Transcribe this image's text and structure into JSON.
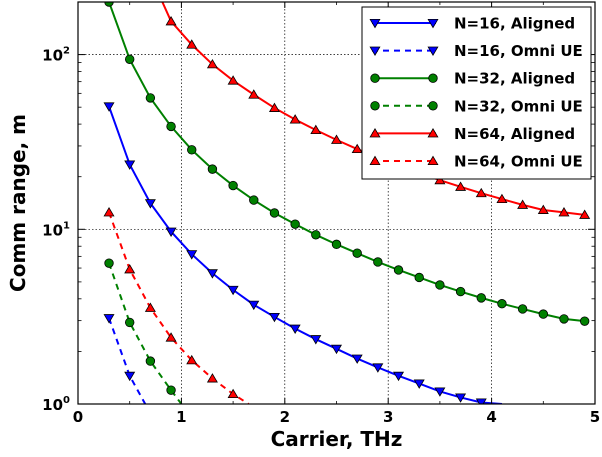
{
  "chart_data": {
    "type": "line",
    "xlabel": "Carrier, THz",
    "ylabel": "Comm range, m",
    "xlim": [
      0,
      5
    ],
    "ylim": [
      1,
      200
    ],
    "yscale": "log",
    "grid": true,
    "legend_position": "top-right",
    "x_ticks": [
      "0",
      "1",
      "2",
      "3",
      "4",
      "5"
    ],
    "y_ticks": [
      {
        "value": 1,
        "base": "10",
        "exp": "0"
      },
      {
        "value": 10,
        "base": "10",
        "exp": "1"
      },
      {
        "value": 100,
        "base": "10",
        "exp": "2"
      }
    ],
    "series": [
      {
        "name": "N=16, Aligned",
        "color": "#0000ff",
        "linestyle": "solid",
        "marker": "triangle-down",
        "x": [
          0.3,
          0.5,
          0.7,
          0.9,
          1.1,
          1.3,
          1.5,
          1.7,
          1.9,
          2.1,
          2.3,
          2.5,
          2.7,
          2.9,
          3.1,
          3.3,
          3.5,
          3.7,
          3.9,
          4.1
        ],
        "y": [
          50.5,
          23.5,
          14.1,
          9.7,
          7.2,
          5.6,
          4.5,
          3.7,
          3.15,
          2.7,
          2.35,
          2.07,
          1.82,
          1.62,
          1.45,
          1.31,
          1.18,
          1.09,
          1.02,
          1.0
        ]
      },
      {
        "name": "N=16, Omni UE",
        "color": "#0000ff",
        "linestyle": "dashed",
        "marker": "triangle-down",
        "x": [
          0.3,
          0.5,
          0.65
        ],
        "y": [
          3.1,
          1.45,
          1.0
        ]
      },
      {
        "name": "N=32, Aligned",
        "color": "#008000",
        "linestyle": "solid",
        "marker": "circle",
        "x": [
          0.3,
          0.5,
          0.7,
          0.9,
          1.1,
          1.3,
          1.5,
          1.7,
          1.9,
          2.1,
          2.3,
          2.5,
          2.7,
          2.9,
          3.1,
          3.3,
          3.5,
          3.7,
          3.9,
          4.1,
          4.3,
          4.5,
          4.7,
          4.9
        ],
        "y": [
          200,
          94,
          56.5,
          38.8,
          28.5,
          22.1,
          17.8,
          14.7,
          12.4,
          10.7,
          9.3,
          8.2,
          7.3,
          6.5,
          5.85,
          5.3,
          4.8,
          4.4,
          4.05,
          3.75,
          3.5,
          3.27,
          3.07,
          2.98
        ]
      },
      {
        "name": "N=32, Omni UE",
        "color": "#008000",
        "linestyle": "dashed",
        "marker": "circle",
        "x": [
          0.3,
          0.5,
          0.7,
          0.9,
          1.0
        ],
        "y": [
          6.4,
          2.93,
          1.76,
          1.2,
          1.0
        ]
      },
      {
        "name": "N=64, Aligned",
        "color": "#ff0000",
        "linestyle": "solid",
        "marker": "triangle-up",
        "x": [
          0.8,
          0.9,
          1.1,
          1.3,
          1.5,
          1.7,
          1.9,
          2.1,
          2.3,
          2.5,
          2.7,
          2.9,
          3.1,
          3.3,
          3.5,
          3.7,
          3.9,
          4.1,
          4.3,
          4.5,
          4.7,
          4.9
        ],
        "y": [
          210,
          155,
          114,
          88,
          71,
          59,
          49.5,
          42.5,
          37,
          32.5,
          28.8,
          25.7,
          23.2,
          21,
          19.1,
          17.5,
          16.1,
          14.9,
          13.8,
          12.9,
          12.5,
          12.1
        ]
      },
      {
        "name": "N=64, Omni UE",
        "color": "#ff0000",
        "linestyle": "dashed",
        "marker": "triangle-up",
        "x": [
          0.3,
          0.5,
          0.7,
          0.9,
          1.1,
          1.3,
          1.5,
          1.65
        ],
        "y": [
          12.5,
          5.9,
          3.55,
          2.4,
          1.78,
          1.4,
          1.14,
          1.0
        ]
      }
    ]
  }
}
